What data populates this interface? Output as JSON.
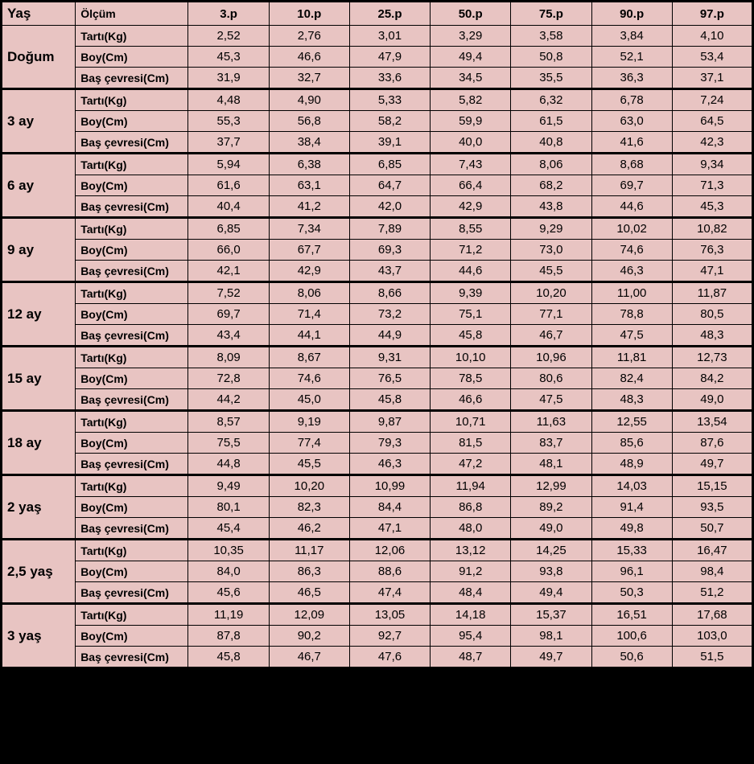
{
  "colors": {
    "background": "#e8c4c2",
    "border": "#000000",
    "text": "#000000"
  },
  "fonts": {
    "header_size_pt": 16,
    "age_size_pt": 17,
    "meas_size_pt": 14,
    "value_size_pt": 15,
    "family": "Arial"
  },
  "header": {
    "age": "Yaş",
    "measure": "Ölçüm",
    "p3": "3.p",
    "p10": "10.p",
    "p25": "25.p",
    "p50": "50.p",
    "p75": "75.p",
    "p90": "90.p",
    "p97": "97.p"
  },
  "measures": {
    "weight": "Tartı(Kg)",
    "height": "Boy(Cm)",
    "head": "Baş çevresi(Cm)"
  },
  "groups": [
    {
      "age": "Doğum",
      "rows": [
        {
          "m": "weight",
          "v": [
            "2,52",
            "2,76",
            "3,01",
            "3,29",
            "3,58",
            "3,84",
            "4,10"
          ]
        },
        {
          "m": "height",
          "v": [
            "45,3",
            "46,6",
            "47,9",
            "49,4",
            "50,8",
            "52,1",
            "53,4"
          ]
        },
        {
          "m": "head",
          "v": [
            "31,9",
            "32,7",
            "33,6",
            "34,5",
            "35,5",
            "36,3",
            "37,1"
          ]
        }
      ]
    },
    {
      "age": "3 ay",
      "rows": [
        {
          "m": "weight",
          "v": [
            "4,48",
            "4,90",
            "5,33",
            "5,82",
            "6,32",
            "6,78",
            "7,24"
          ]
        },
        {
          "m": "height",
          "v": [
            "55,3",
            "56,8",
            "58,2",
            "59,9",
            "61,5",
            "63,0",
            "64,5"
          ]
        },
        {
          "m": "head",
          "v": [
            "37,7",
            "38,4",
            "39,1",
            "40,0",
            "40,8",
            "41,6",
            "42,3"
          ]
        }
      ]
    },
    {
      "age": "6 ay",
      "rows": [
        {
          "m": "weight",
          "v": [
            "5,94",
            "6,38",
            "6,85",
            "7,43",
            "8,06",
            "8,68",
            "9,34"
          ]
        },
        {
          "m": "height",
          "v": [
            "61,6",
            "63,1",
            "64,7",
            "66,4",
            "68,2",
            "69,7",
            "71,3"
          ]
        },
        {
          "m": "head",
          "v": [
            "40,4",
            "41,2",
            "42,0",
            "42,9",
            "43,8",
            "44,6",
            "45,3"
          ]
        }
      ]
    },
    {
      "age": "9 ay",
      "rows": [
        {
          "m": "weight",
          "v": [
            "6,85",
            "7,34",
            "7,89",
            "8,55",
            "9,29",
            "10,02",
            "10,82"
          ]
        },
        {
          "m": "height",
          "v": [
            "66,0",
            "67,7",
            "69,3",
            "71,2",
            "73,0",
            "74,6",
            "76,3"
          ]
        },
        {
          "m": "head",
          "v": [
            "42,1",
            "42,9",
            "43,7",
            "44,6",
            "45,5",
            "46,3",
            "47,1"
          ]
        }
      ]
    },
    {
      "age": "12 ay",
      "rows": [
        {
          "m": "weight",
          "v": [
            "7,52",
            "8,06",
            "8,66",
            "9,39",
            "10,20",
            "11,00",
            "11,87"
          ]
        },
        {
          "m": "height",
          "v": [
            "69,7",
            "71,4",
            "73,2",
            "75,1",
            "77,1",
            "78,8",
            "80,5"
          ]
        },
        {
          "m": "head",
          "v": [
            "43,4",
            "44,1",
            "44,9",
            "45,8",
            "46,7",
            "47,5",
            "48,3"
          ]
        }
      ]
    },
    {
      "age": "15 ay",
      "rows": [
        {
          "m": "weight",
          "v": [
            "8,09",
            "8,67",
            "9,31",
            "10,10",
            "10,96",
            "11,81",
            "12,73"
          ]
        },
        {
          "m": "height",
          "v": [
            "72,8",
            "74,6",
            "76,5",
            "78,5",
            "80,6",
            "82,4",
            "84,2"
          ]
        },
        {
          "m": "head",
          "v": [
            "44,2",
            "45,0",
            "45,8",
            "46,6",
            "47,5",
            "48,3",
            "49,0"
          ]
        }
      ]
    },
    {
      "age": "18 ay",
      "rows": [
        {
          "m": "weight",
          "v": [
            "8,57",
            "9,19",
            "9,87",
            "10,71",
            "11,63",
            "12,55",
            "13,54"
          ]
        },
        {
          "m": "height",
          "v": [
            "75,5",
            "77,4",
            "79,3",
            "81,5",
            "83,7",
            "85,6",
            "87,6"
          ]
        },
        {
          "m": "head",
          "v": [
            "44,8",
            "45,5",
            "46,3",
            "47,2",
            "48,1",
            "48,9",
            "49,7"
          ]
        }
      ]
    },
    {
      "age": "2 yaş",
      "rows": [
        {
          "m": "weight",
          "v": [
            "9,49",
            "10,20",
            "10,99",
            "11,94",
            "12,99",
            "14,03",
            "15,15"
          ]
        },
        {
          "m": "height",
          "v": [
            "80,1",
            "82,3",
            "84,4",
            "86,8",
            "89,2",
            "91,4",
            "93,5"
          ]
        },
        {
          "m": "head",
          "v": [
            "45,4",
            "46,2",
            "47,1",
            "48,0",
            "49,0",
            "49,8",
            "50,7"
          ]
        }
      ]
    },
    {
      "age": "2,5 yaş",
      "rows": [
        {
          "m": "weight",
          "v": [
            "10,35",
            "11,17",
            "12,06",
            "13,12",
            "14,25",
            "15,33",
            "16,47"
          ]
        },
        {
          "m": "height",
          "v": [
            "84,0",
            "86,3",
            "88,6",
            "91,2",
            "93,8",
            "96,1",
            "98,4"
          ]
        },
        {
          "m": "head",
          "v": [
            "45,6",
            "46,5",
            "47,4",
            "48,4",
            "49,4",
            "50,3",
            "51,2"
          ]
        }
      ]
    },
    {
      "age": "3 yaş",
      "rows": [
        {
          "m": "weight",
          "v": [
            "11,19",
            "12,09",
            "13,05",
            "14,18",
            "15,37",
            "16,51",
            "17,68"
          ]
        },
        {
          "m": "height",
          "v": [
            "87,8",
            "90,2",
            "92,7",
            "95,4",
            "98,1",
            "100,6",
            "103,0"
          ]
        },
        {
          "m": "head",
          "v": [
            "45,8",
            "46,7",
            "47,6",
            "48,7",
            "49,7",
            "50,6",
            "51,5"
          ]
        }
      ]
    }
  ]
}
